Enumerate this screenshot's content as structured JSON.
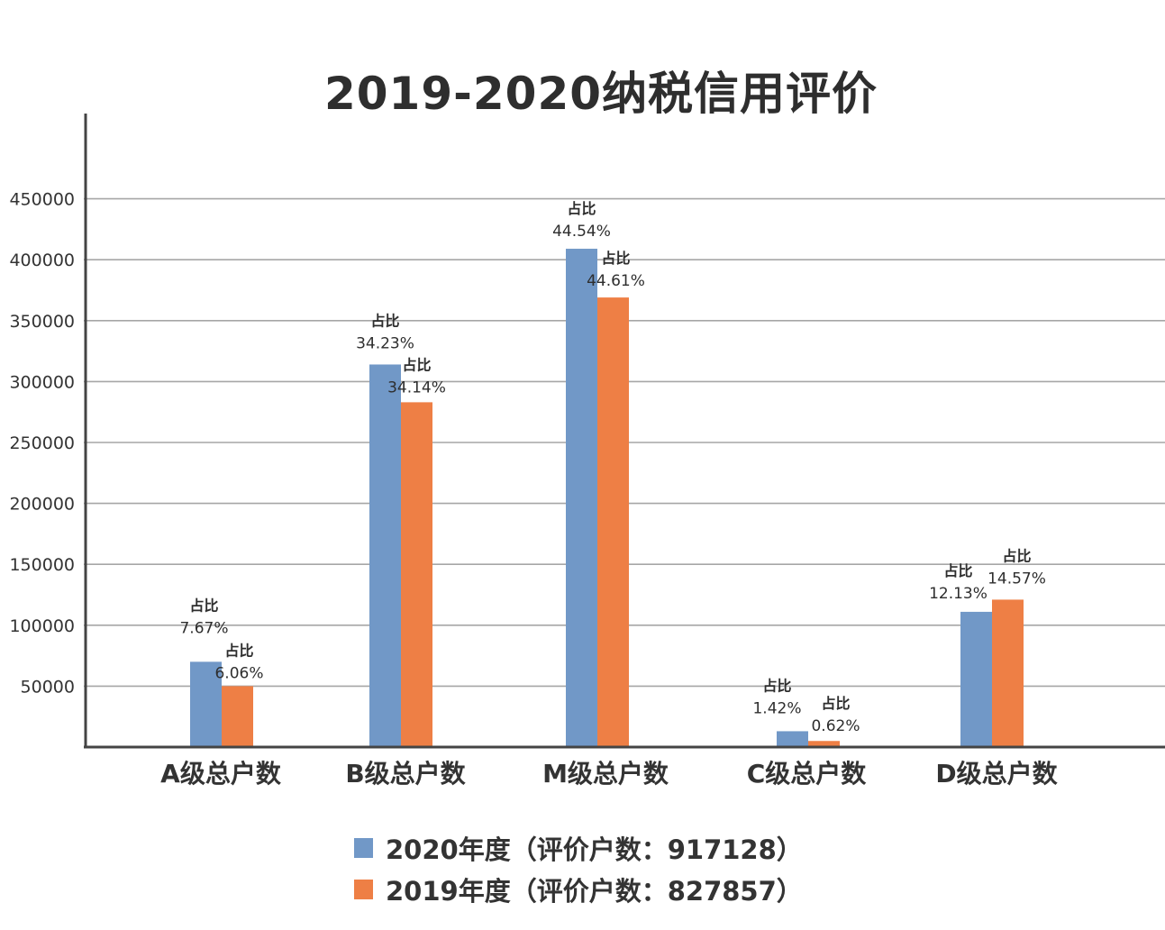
{
  "chart_data": {
    "type": "bar",
    "title": "2019-2020纳税信用评价",
    "categories": [
      "A级总户数",
      "B级总户数",
      "M级总户数",
      "C级总户数",
      "D级总户数"
    ],
    "y_ticks": [
      "50000",
      "100000",
      "150000",
      "200000",
      "250000",
      "300000",
      "350000",
      "400000",
      "450000"
    ],
    "ylim": [
      0,
      520000
    ],
    "grid": true,
    "legend_position": "bottom",
    "data_label_prefix": "占比",
    "series": [
      {
        "name": "2020年度（评价户数：917128）",
        "color": "#7198C7",
        "values": [
          70000,
          314000,
          409000,
          13000,
          111000
        ],
        "data_labels": [
          "7.67%",
          "34.23%",
          "44.54%",
          "1.42%",
          "12.13%"
        ]
      },
      {
        "name": "2019年度（评价户数：827857）",
        "color": "#EE7F45",
        "values": [
          50000,
          283000,
          369000,
          5000,
          121000
        ],
        "data_labels": [
          "6.06%",
          "34.14%",
          "44.61%",
          "0.62%",
          "14.57%"
        ]
      }
    ]
  }
}
